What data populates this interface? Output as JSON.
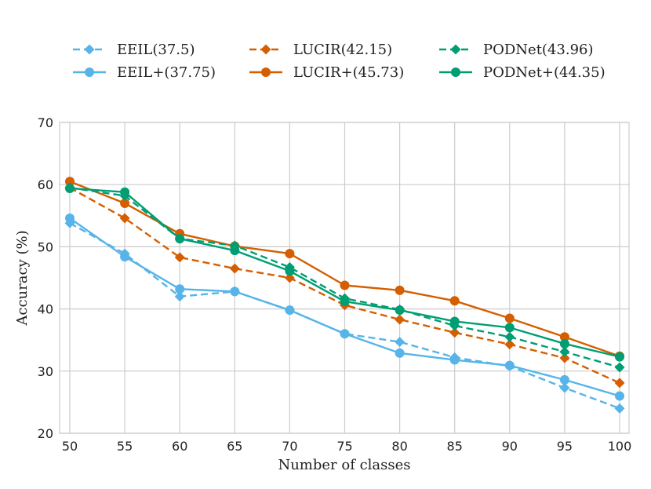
{
  "chart_data": {
    "type": "line",
    "title": "",
    "xlabel": "Number of classes",
    "ylabel": "Accuracy (%)",
    "x": [
      50,
      55,
      60,
      65,
      70,
      75,
      80,
      85,
      90,
      95,
      100
    ],
    "xlim": [
      50,
      100
    ],
    "ylim": [
      20,
      70
    ],
    "yticks": [
      20,
      30,
      40,
      50,
      60,
      70
    ],
    "grid": true,
    "legend_position": "top",
    "series": [
      {
        "name": "EEIL(37.5)",
        "color": "#56B4E9",
        "dash": true,
        "marker": "diamond",
        "values": [
          53.8,
          48.9,
          42.0,
          42.8,
          39.8,
          36.0,
          34.7,
          32.2,
          30.8,
          27.3,
          24.0
        ]
      },
      {
        "name": "EEIL+(37.75)",
        "color": "#56B4E9",
        "dash": false,
        "marker": "circle",
        "values": [
          54.6,
          48.4,
          43.2,
          42.8,
          39.8,
          36.0,
          32.9,
          31.8,
          30.9,
          28.6,
          26.0
        ]
      },
      {
        "name": "LUCIR(42.15)",
        "color": "#D55E00",
        "dash": true,
        "marker": "diamond",
        "values": [
          59.5,
          54.6,
          48.3,
          46.5,
          45.0,
          40.6,
          38.3,
          36.2,
          34.3,
          32.1,
          28.1
        ]
      },
      {
        "name": "LUCIR+(45.73)",
        "color": "#D55E00",
        "dash": false,
        "marker": "circle",
        "values": [
          60.5,
          57.0,
          52.1,
          50.1,
          48.9,
          43.8,
          43.0,
          41.3,
          38.5,
          35.5,
          32.4
        ]
      },
      {
        "name": "PODNet(43.96)",
        "color": "#009E73",
        "dash": true,
        "marker": "diamond",
        "values": [
          59.5,
          58.2,
          51.3,
          50.2,
          46.7,
          41.7,
          39.9,
          37.3,
          35.5,
          33.1,
          30.6
        ]
      },
      {
        "name": "PODNet+(44.35)",
        "color": "#009E73",
        "dash": false,
        "marker": "circle",
        "values": [
          59.4,
          58.8,
          51.3,
          49.4,
          46.1,
          41.2,
          39.8,
          38.0,
          37.0,
          34.4,
          32.3
        ]
      }
    ]
  }
}
